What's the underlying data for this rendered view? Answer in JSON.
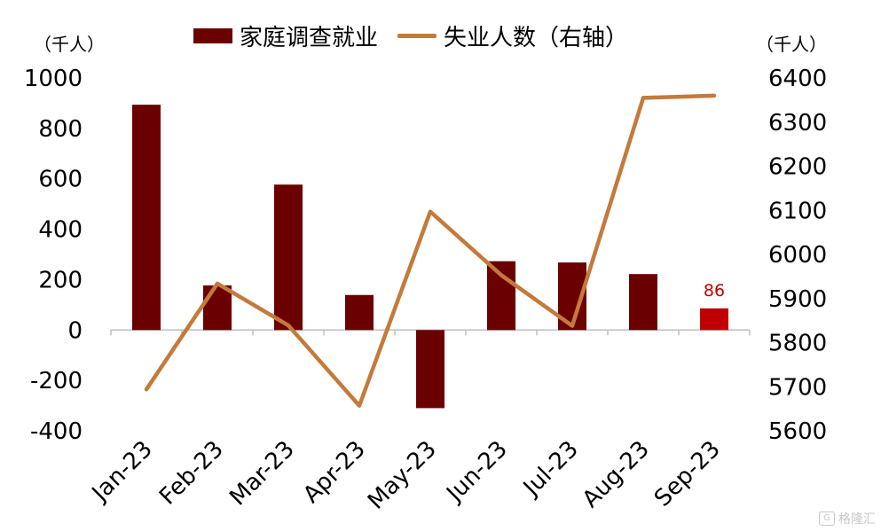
{
  "chart_data": {
    "type": "bar+line",
    "categories": [
      "Jan-23",
      "Feb-23",
      "Mar-23",
      "Apr-23",
      "May-23",
      "Jun-23",
      "Jul-23",
      "Aug-23",
      "Sep-23"
    ],
    "series": [
      {
        "name": "家庭调查就业",
        "type": "bar",
        "axis": "left",
        "color": "#6b0000",
        "highlight_color": "#c00000",
        "highlight_index": 8,
        "values": [
          894,
          177,
          577,
          139,
          -310,
          273,
          268,
          222,
          86
        ]
      },
      {
        "name": "失业人数（右轴）",
        "type": "line",
        "axis": "right",
        "color": "#c47a3a",
        "values": [
          5694,
          5934,
          5839,
          5657,
          6097,
          5953,
          5838,
          6355,
          6360
        ]
      }
    ],
    "left_axis": {
      "unit": "（千人）",
      "ylim": [
        -400,
        1000
      ],
      "ticks": [
        1000,
        800,
        600,
        400,
        200,
        0,
        -200,
        -400
      ]
    },
    "right_axis": {
      "unit": "（千人）",
      "ylim": [
        5600,
        6400
      ],
      "ticks": [
        6400,
        6300,
        6200,
        6100,
        6000,
        5900,
        5800,
        5700,
        5600
      ]
    },
    "data_labels": [
      {
        "category": "Sep-23",
        "text": "86",
        "color": "#c00000"
      }
    ],
    "grid": false,
    "legend_position": "top-center"
  },
  "watermark": {
    "badge": "G",
    "text": "格隆汇"
  }
}
